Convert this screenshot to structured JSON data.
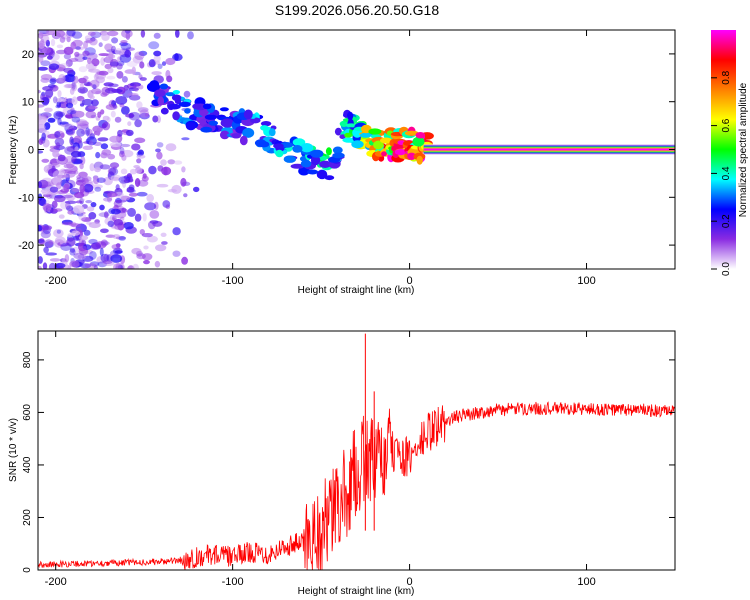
{
  "title": "S199.2026.056.20.50.G18",
  "chart_data": [
    {
      "type": "heatmap",
      "title": "S199.2026.056.20.50.G18",
      "xlabel": "Height of straight line (km)",
      "ylabel": "Frequency (Hz)",
      "xlim": [
        -210,
        150
      ],
      "ylim": [
        -25,
        25
      ],
      "xticks": [
        -200,
        -100,
        0,
        100
      ],
      "xtick_labels": [
        "-200",
        "-100",
        "0",
        "100"
      ],
      "yticks": [
        -20,
        -10,
        0,
        10,
        20
      ],
      "ytick_labels": [
        "-20",
        "-10",
        "0",
        "10",
        "20"
      ],
      "colorbar": {
        "label": "Normalized spectral amplitude",
        "range": [
          0,
          1
        ],
        "ticks": [
          0.0,
          0.2,
          0.4,
          0.6,
          0.8
        ],
        "tick_labels": [
          "0.0",
          "0.2",
          "0.4",
          "0.6",
          "0.8"
        ],
        "colors": [
          "#ffffff",
          "#8a2be2",
          "#0000ff",
          "#00ffff",
          "#00ff00",
          "#ffff00",
          "#ff8000",
          "#ff0000",
          "#ff00ff"
        ]
      },
      "signal_ridge": {
        "x": [
          -145,
          -135,
          -125,
          -115,
          -105,
          -95,
          -85,
          -75,
          -65,
          -55,
          -45,
          -35,
          -30,
          -25,
          -20,
          -15,
          -10,
          -5,
          0,
          5,
          10,
          20,
          50,
          100,
          150
        ],
        "y": [
          11,
          10,
          8,
          7,
          6,
          5,
          4,
          2,
          -1,
          -2,
          -3,
          5,
          4,
          2,
          1,
          0.5,
          1,
          1,
          1,
          0.5,
          0,
          0,
          0,
          0,
          0
        ],
        "amplitude": [
          0.3,
          0.35,
          0.3,
          0.3,
          0.3,
          0.35,
          0.35,
          0.4,
          0.4,
          0.45,
          0.4,
          0.5,
          0.6,
          0.7,
          0.9,
          0.9,
          0.9,
          0.9,
          0.9,
          0.95,
          1.0,
          1.0,
          1.0,
          1.0,
          1.0
        ]
      },
      "noise_region_x": [
        -210,
        -130
      ]
    },
    {
      "type": "line",
      "xlabel": "Height of straight line (km)",
      "ylabel": "SNR (10 * v/v)",
      "xlim": [
        -210,
        150
      ],
      "ylim": [
        0,
        910
      ],
      "xticks": [
        -200,
        -100,
        0,
        100
      ],
      "xtick_labels": [
        "-200",
        "-100",
        "0",
        "100"
      ],
      "yticks": [
        0,
        200,
        400,
        600,
        800
      ],
      "ytick_labels": [
        "0",
        "200",
        "400",
        "600",
        "800"
      ],
      "color": "#ff0000",
      "series": [
        {
          "x": [
            -210,
            -180,
            -150,
            -130,
            -120,
            -110,
            -100,
            -90,
            -80,
            -70,
            -60,
            -50,
            -45,
            -40,
            -35,
            -30,
            -25,
            -22,
            -20,
            -15,
            -10,
            -5,
            0,
            5,
            10,
            15,
            20,
            25,
            30,
            40,
            50,
            70,
            90,
            110,
            130,
            150
          ],
          "y": [
            20,
            25,
            30,
            35,
            50,
            60,
            50,
            70,
            60,
            90,
            110,
            150,
            200,
            250,
            300,
            380,
            420,
            440,
            380,
            420,
            450,
            440,
            420,
            470,
            520,
            545,
            560,
            580,
            590,
            600,
            610,
            615,
            615,
            610,
            610,
            600
          ]
        }
      ],
      "annotations": [
        {
          "x": -25,
          "y": 900,
          "text": ""
        },
        {
          "x": -20,
          "y": 680,
          "text": ""
        }
      ]
    }
  ]
}
